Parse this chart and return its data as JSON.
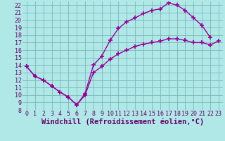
{
  "xlabel": "Windchill (Refroidissement éolien,°C)",
  "bg_color": "#b0e8e8",
  "line_color": "#990099",
  "xlim": [
    -0.5,
    23.5
  ],
  "ylim": [
    8,
    22.5
  ],
  "xticks": [
    0,
    1,
    2,
    3,
    4,
    5,
    6,
    7,
    8,
    9,
    10,
    11,
    12,
    13,
    14,
    15,
    16,
    17,
    18,
    19,
    20,
    21,
    22,
    23
  ],
  "yticks": [
    8,
    9,
    10,
    11,
    12,
    13,
    14,
    15,
    16,
    17,
    18,
    19,
    20,
    21,
    22
  ],
  "line1_x": [
    0,
    1,
    2,
    3,
    4,
    5,
    6,
    7,
    8,
    9,
    10,
    11,
    12,
    13,
    14,
    15,
    16,
    17,
    18,
    19,
    20,
    21,
    22
  ],
  "line1_y": [
    13.8,
    12.5,
    12.0,
    11.2,
    10.4,
    9.7,
    8.7,
    10.2,
    14.0,
    15.2,
    17.3,
    18.9,
    19.8,
    20.3,
    20.9,
    21.3,
    21.5,
    22.3,
    22.0,
    21.3,
    20.3,
    19.3,
    17.7
  ],
  "line2_x": [
    0,
    1,
    2,
    3,
    4,
    5,
    6,
    7,
    8,
    9,
    10,
    11,
    12,
    13,
    14,
    15,
    16,
    17,
    18,
    19,
    20,
    21,
    22,
    23
  ],
  "line2_y": [
    13.8,
    12.5,
    12.0,
    11.2,
    10.4,
    9.7,
    8.7,
    10.0,
    13.0,
    13.8,
    14.8,
    15.5,
    16.0,
    16.5,
    16.8,
    17.0,
    17.2,
    17.5,
    17.5,
    17.3,
    17.0,
    17.0,
    16.7,
    17.2
  ],
  "grid_color": "#7ab8b8",
  "marker": "+",
  "markersize": 4,
  "markeredgewidth": 1.2,
  "linewidth": 1.0,
  "xlabel_fontsize": 7.5,
  "tick_fontsize": 6.0
}
